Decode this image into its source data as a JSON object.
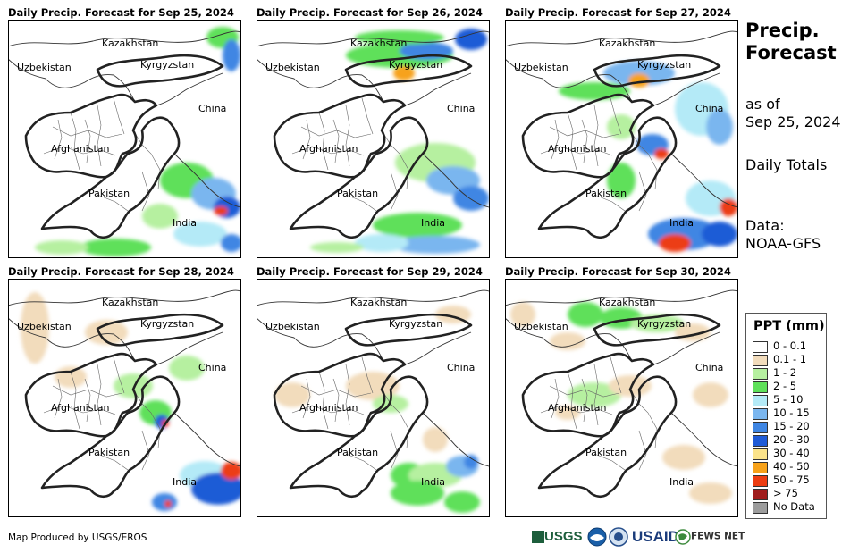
{
  "panels": [
    {
      "title": "Daily Precip. Forecast for Sep 25, 2024"
    },
    {
      "title": "Daily Precip. Forecast for Sep 26, 2024"
    },
    {
      "title": "Daily Precip. Forecast for Sep 27, 2024"
    },
    {
      "title": "Daily Precip. Forecast for Sep 28, 2024"
    },
    {
      "title": "Daily Precip. Forecast for Sep 29, 2024"
    },
    {
      "title": "Daily Precip. Forecast for Sep 30, 2024"
    }
  ],
  "map_labels": {
    "kazakhstan": "Kazakhstan",
    "uzbekistan": "Uzbekistan",
    "kyrgyzstan": "Kyrgyzstan",
    "china": "China",
    "afghanistan": "Afghanistan",
    "pakistan": "Pakistan",
    "india": "India"
  },
  "side": {
    "title_line1": "Precip.",
    "title_line2": "Forecast",
    "asof_line1": "as of",
    "asof_line2": "Sep 25, 2024",
    "totals": "Daily Totals",
    "data_line1": "Data:",
    "data_line2": "NOAA-GFS"
  },
  "legend": {
    "title": "PPT (mm)",
    "items": [
      {
        "label": "0 - 0.1",
        "color": "#ffffff"
      },
      {
        "label": "0.1 - 1",
        "color": "#f2dcbc"
      },
      {
        "label": "1 - 2",
        "color": "#b6f0a0"
      },
      {
        "label": "2 - 5",
        "color": "#5fe05a"
      },
      {
        "label": "5 - 10",
        "color": "#b4eaf7"
      },
      {
        "label": "10 - 15",
        "color": "#7ab6ef"
      },
      {
        "label": "15 - 20",
        "color": "#3f86e3"
      },
      {
        "label": "20 - 30",
        "color": "#1f5bd6"
      },
      {
        "label": "30 - 40",
        "color": "#fbe38a"
      },
      {
        "label": "40 - 50",
        "color": "#f7a21a"
      },
      {
        "label": "50 - 75",
        "color": "#ec3d12"
      },
      {
        "label": "> 75",
        "color": "#a01d1d"
      },
      {
        "label": "No Data",
        "color": "#9c9c9c"
      }
    ]
  },
  "footer": "Map Produced by USGS/EROS",
  "logos": {
    "usgs": "USGS",
    "usaid": "USAID",
    "fewsnet": "FEWS NET"
  }
}
